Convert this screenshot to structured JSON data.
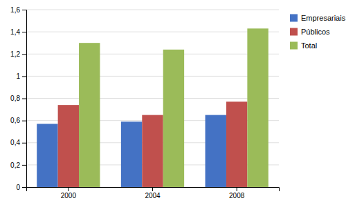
{
  "chart_data": {
    "type": "bar",
    "categories": [
      "2000",
      "2004",
      "2008"
    ],
    "series": [
      {
        "name": "Empresariais",
        "color": "#4472C4",
        "values": [
          0.57,
          0.59,
          0.65
        ]
      },
      {
        "name": "Públicos",
        "color": "#C0504D",
        "values": [
          0.74,
          0.65,
          0.77
        ]
      },
      {
        "name": "Total",
        "color": "#9BBB59",
        "values": [
          1.3,
          1.24,
          1.43
        ]
      }
    ],
    "ylim": [
      0,
      1.6
    ],
    "yticks": [
      0,
      {
        "value": 0.2,
        "label": "0,2"
      },
      {
        "value": 0.4,
        "label": "0,4"
      },
      {
        "value": 0.6,
        "label": "0,6"
      },
      {
        "value": 0.8,
        "label": "0,8"
      },
      1,
      {
        "value": 1.2,
        "label": "1,2"
      },
      {
        "value": 1.4,
        "label": "1,4"
      },
      {
        "value": 1.6,
        "label": "1,6"
      }
    ],
    "grid": true,
    "legend": "right"
  }
}
